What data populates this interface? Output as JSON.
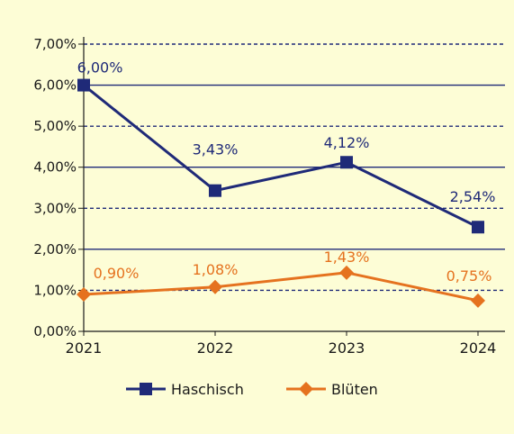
{
  "colors": {
    "background": "#fdfdd6",
    "grid": "#1f2a78",
    "axis": "#1a1a1a",
    "haschisch": "#1f2a78",
    "blueten": "#e5721f"
  },
  "chart_data": {
    "type": "line",
    "title": "",
    "xlabel": "",
    "ylabel": "",
    "categories": [
      "2021",
      "2022",
      "2023",
      "2024"
    ],
    "ylim": [
      0,
      7
    ],
    "y_ticks": [
      "0,00%",
      "1,00%",
      "2,00%",
      "3,00%",
      "4,00%",
      "5,00%",
      "6,00%",
      "7,00%"
    ],
    "grid": "horizontal, alternating solid and dashed",
    "legend_position": "bottom",
    "series": [
      {
        "name": "Haschisch",
        "marker": "square",
        "values": [
          6.0,
          3.43,
          4.12,
          2.54
        ],
        "labels": [
          "6,00%",
          "3,43%",
          "4,12%",
          "2,54%"
        ]
      },
      {
        "name": "Blüten",
        "marker": "diamond",
        "values": [
          0.9,
          1.08,
          1.43,
          0.75
        ],
        "labels": [
          "0,90%",
          "1,08%",
          "1,43%",
          "0,75%"
        ]
      }
    ]
  }
}
